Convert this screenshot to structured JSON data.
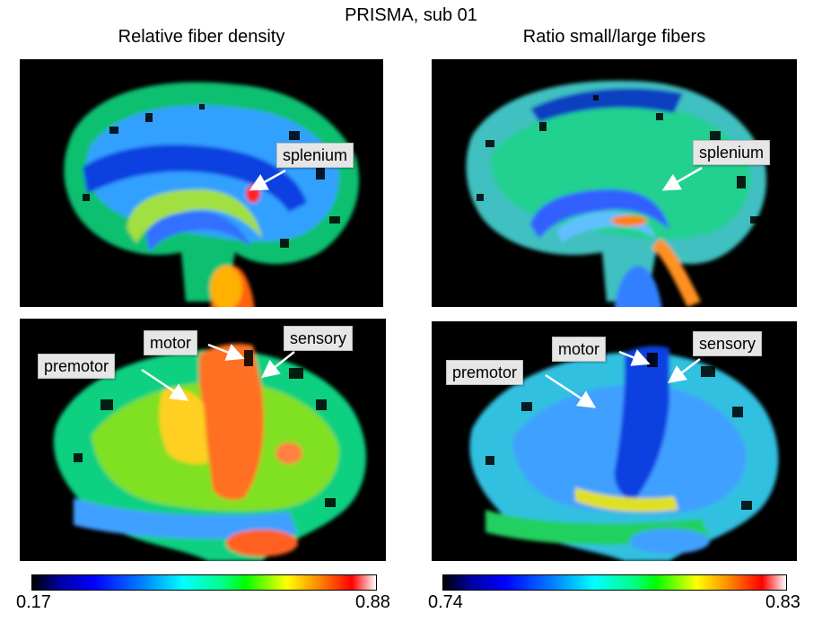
{
  "figure": {
    "title": "PRISMA, sub 01",
    "left_column_title": "Relative fiber density",
    "right_column_title": "Ratio small/large fibers"
  },
  "labels": {
    "tl_splenium": "splenium",
    "tr_splenium": "splenium",
    "bl_motor": "motor",
    "bl_sensory": "sensory",
    "bl_premotor": "premotor",
    "br_motor": "motor",
    "br_sensory": "sensory",
    "br_premotor": "premotor"
  },
  "colorbars": {
    "left": {
      "min_label": "0.17",
      "max_label": "0.88"
    },
    "right": {
      "min_label": "0.74",
      "max_label": "0.83"
    }
  },
  "colormap": "jet-like with black at minimum and white at maximum"
}
